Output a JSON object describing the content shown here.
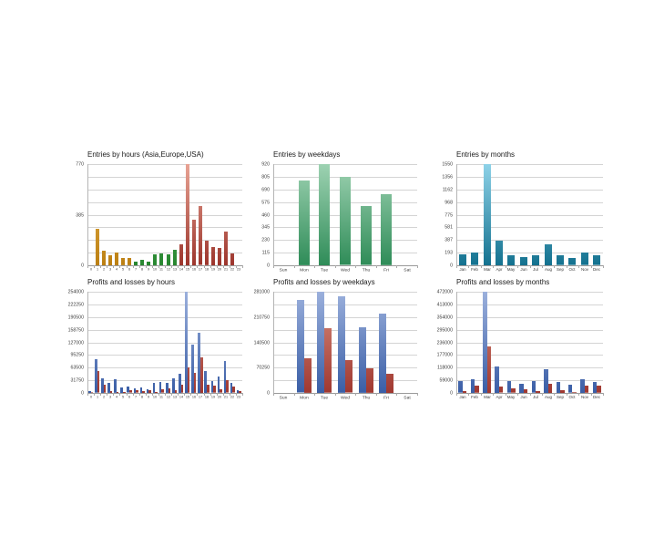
{
  "palettes": {
    "orange": {
      "light": "#eebb55",
      "dark": "#bb7f12"
    },
    "green": {
      "light": "#6fc07a",
      "dark": "#27862f"
    },
    "redhour": {
      "light": "#e8a394",
      "dark": "#9c352c"
    },
    "greenwk": {
      "light": "#9ed2b2",
      "dark": "#2f8c58"
    },
    "teal": {
      "light": "#8ed2e8",
      "dark": "#13718f"
    },
    "blue": {
      "light": "#9bb0dc",
      "dark": "#3a5ea6"
    },
    "red": {
      "light": "#d98f7f",
      "dark": "#a03830"
    }
  },
  "chart_data": [
    {
      "id": "entries-by-hours",
      "type": "bar",
      "title": "Entries by hours (Asia,Europe,USA)",
      "categories": [
        "0",
        "1",
        "2",
        "3",
        "4",
        "5",
        "6",
        "7",
        "8",
        "9",
        "10",
        "11",
        "12",
        "13",
        "14",
        "15",
        "16",
        "17",
        "18",
        "19",
        "20",
        "21",
        "22",
        "23"
      ],
      "ymax": 770,
      "ylim": [
        0,
        770
      ],
      "grid": true,
      "yticks": [
        "770",
        "385",
        "0"
      ],
      "series": [
        {
          "name": "entries",
          "values": [
            0,
            280,
            111,
            77,
            97,
            55,
            55,
            28,
            42,
            28,
            83,
            90,
            83,
            118,
            160,
            770,
            348,
            448,
            186,
            139,
            132,
            257,
            90,
            0
          ],
          "bar_palettes": [
            "orange",
            "orange",
            "orange",
            "orange",
            "orange",
            "orange",
            "orange",
            "green",
            "green",
            "green",
            "green",
            "green",
            "green",
            "green",
            "redhour",
            "redhour",
            "redhour",
            "redhour",
            "redhour",
            "redhour",
            "redhour",
            "redhour",
            "redhour",
            "redhour"
          ]
        }
      ]
    },
    {
      "id": "entries-by-weekdays",
      "type": "bar",
      "title": "Entries by weekdays",
      "categories": [
        "Sun",
        "Mon",
        "Tue",
        "Wed",
        "Thu",
        "Fri",
        "Sat"
      ],
      "ymax": 920,
      "ylim": [
        0,
        920
      ],
      "grid": true,
      "yticks": [
        "920",
        "805",
        "690",
        "575",
        "460",
        "345",
        "230",
        "115",
        "0"
      ],
      "series": [
        {
          "name": "entries",
          "palette": "greenwk",
          "values": [
            0,
            770,
            920,
            800,
            535,
            645,
            0
          ]
        }
      ]
    },
    {
      "id": "entries-by-months",
      "type": "bar",
      "title": "Entries by months",
      "categories": [
        "Jan",
        "Feb",
        "Mar",
        "Apr",
        "May",
        "Jun",
        "Jul",
        "Aug",
        "Sep",
        "Oct",
        "Nov",
        "Dec"
      ],
      "ymax": 1550,
      "ylim": [
        0,
        1550
      ],
      "grid": true,
      "yticks": [
        "1550",
        "1356",
        "1162",
        "968",
        "775",
        "581",
        "387",
        "193",
        "0"
      ],
      "series": [
        {
          "name": "entries",
          "palette": "teal",
          "values": [
            168,
            191,
            1550,
            383,
            159,
            126,
            159,
            327,
            149,
            107,
            191,
            149
          ]
        }
      ]
    },
    {
      "id": "profits-losses-by-hours",
      "type": "bar",
      "title": "Profits and losses by hours",
      "categories": [
        "0",
        "1",
        "2",
        "3",
        "4",
        "5",
        "6",
        "7",
        "8",
        "9",
        "10",
        "11",
        "12",
        "13",
        "14",
        "15",
        "16",
        "17",
        "18",
        "19",
        "20",
        "21",
        "22",
        "23"
      ],
      "ymax": 254000,
      "ylim": [
        0,
        254000
      ],
      "grid": true,
      "yticks": [
        "254000",
        "222250",
        "190500",
        "158750",
        "127000",
        "95250",
        "63500",
        "31750",
        "0"
      ],
      "series": [
        {
          "name": "profits",
          "palette": "blue",
          "values": [
            4600,
            84000,
            37000,
            25000,
            34000,
            14000,
            15000,
            12000,
            14000,
            10000,
            25000,
            27000,
            25000,
            37000,
            48000,
            254000,
            122000,
            151000,
            56000,
            29000,
            40500,
            81000,
            25000,
            7600
          ]
        },
        {
          "name": "losses",
          "palette": "red",
          "values": [
            1500,
            54000,
            20000,
            4600,
            3000,
            3000,
            6000,
            6000,
            4600,
            7600,
            2300,
            8400,
            12000,
            7600,
            20000,
            63500,
            50000,
            90000,
            20000,
            17600,
            8400,
            31000,
            15000,
            4600
          ]
        }
      ]
    },
    {
      "id": "profits-losses-by-weekdays",
      "type": "bar",
      "title": "Profits and losses by weekdays",
      "categories": [
        "Sun",
        "Mon",
        "Tue",
        "Wed",
        "Thu",
        "Fri",
        "Sat"
      ],
      "ymax": 281000,
      "ylim": [
        0,
        281000
      ],
      "grid": true,
      "yticks": [
        "281000",
        "210750",
        "140500",
        "70250",
        "0"
      ],
      "series": [
        {
          "name": "profits",
          "palette": "blue",
          "values": [
            0,
            257000,
            281000,
            268000,
            182000,
            221000,
            0
          ]
        },
        {
          "name": "losses",
          "palette": "red",
          "values": [
            0,
            96000,
            179000,
            90000,
            68000,
            54000,
            0
          ]
        }
      ]
    },
    {
      "id": "profits-losses-by-months",
      "type": "bar",
      "title": "Profits and losses by months",
      "categories": [
        "Jan",
        "Feb",
        "Mar",
        "Apr",
        "May",
        "Jun",
        "Jul",
        "Aug",
        "Sep",
        "Oct",
        "Nov",
        "Dec"
      ],
      "ymax": 472000,
      "ylim": [
        0,
        472000
      ],
      "grid": true,
      "yticks": [
        "472000",
        "413000",
        "354000",
        "295000",
        "236000",
        "177000",
        "118000",
        "59000",
        "0"
      ],
      "series": [
        {
          "name": "profits",
          "palette": "blue",
          "values": [
            54000,
            65000,
            472000,
            125000,
            54000,
            43000,
            54000,
            111000,
            51000,
            37000,
            65000,
            51000
          ]
        },
        {
          "name": "losses",
          "palette": "red",
          "values": [
            8500,
            33000,
            218000,
            28000,
            20000,
            17000,
            8500,
            43000,
            14000,
            3000,
            33000,
            33000
          ]
        }
      ]
    }
  ]
}
